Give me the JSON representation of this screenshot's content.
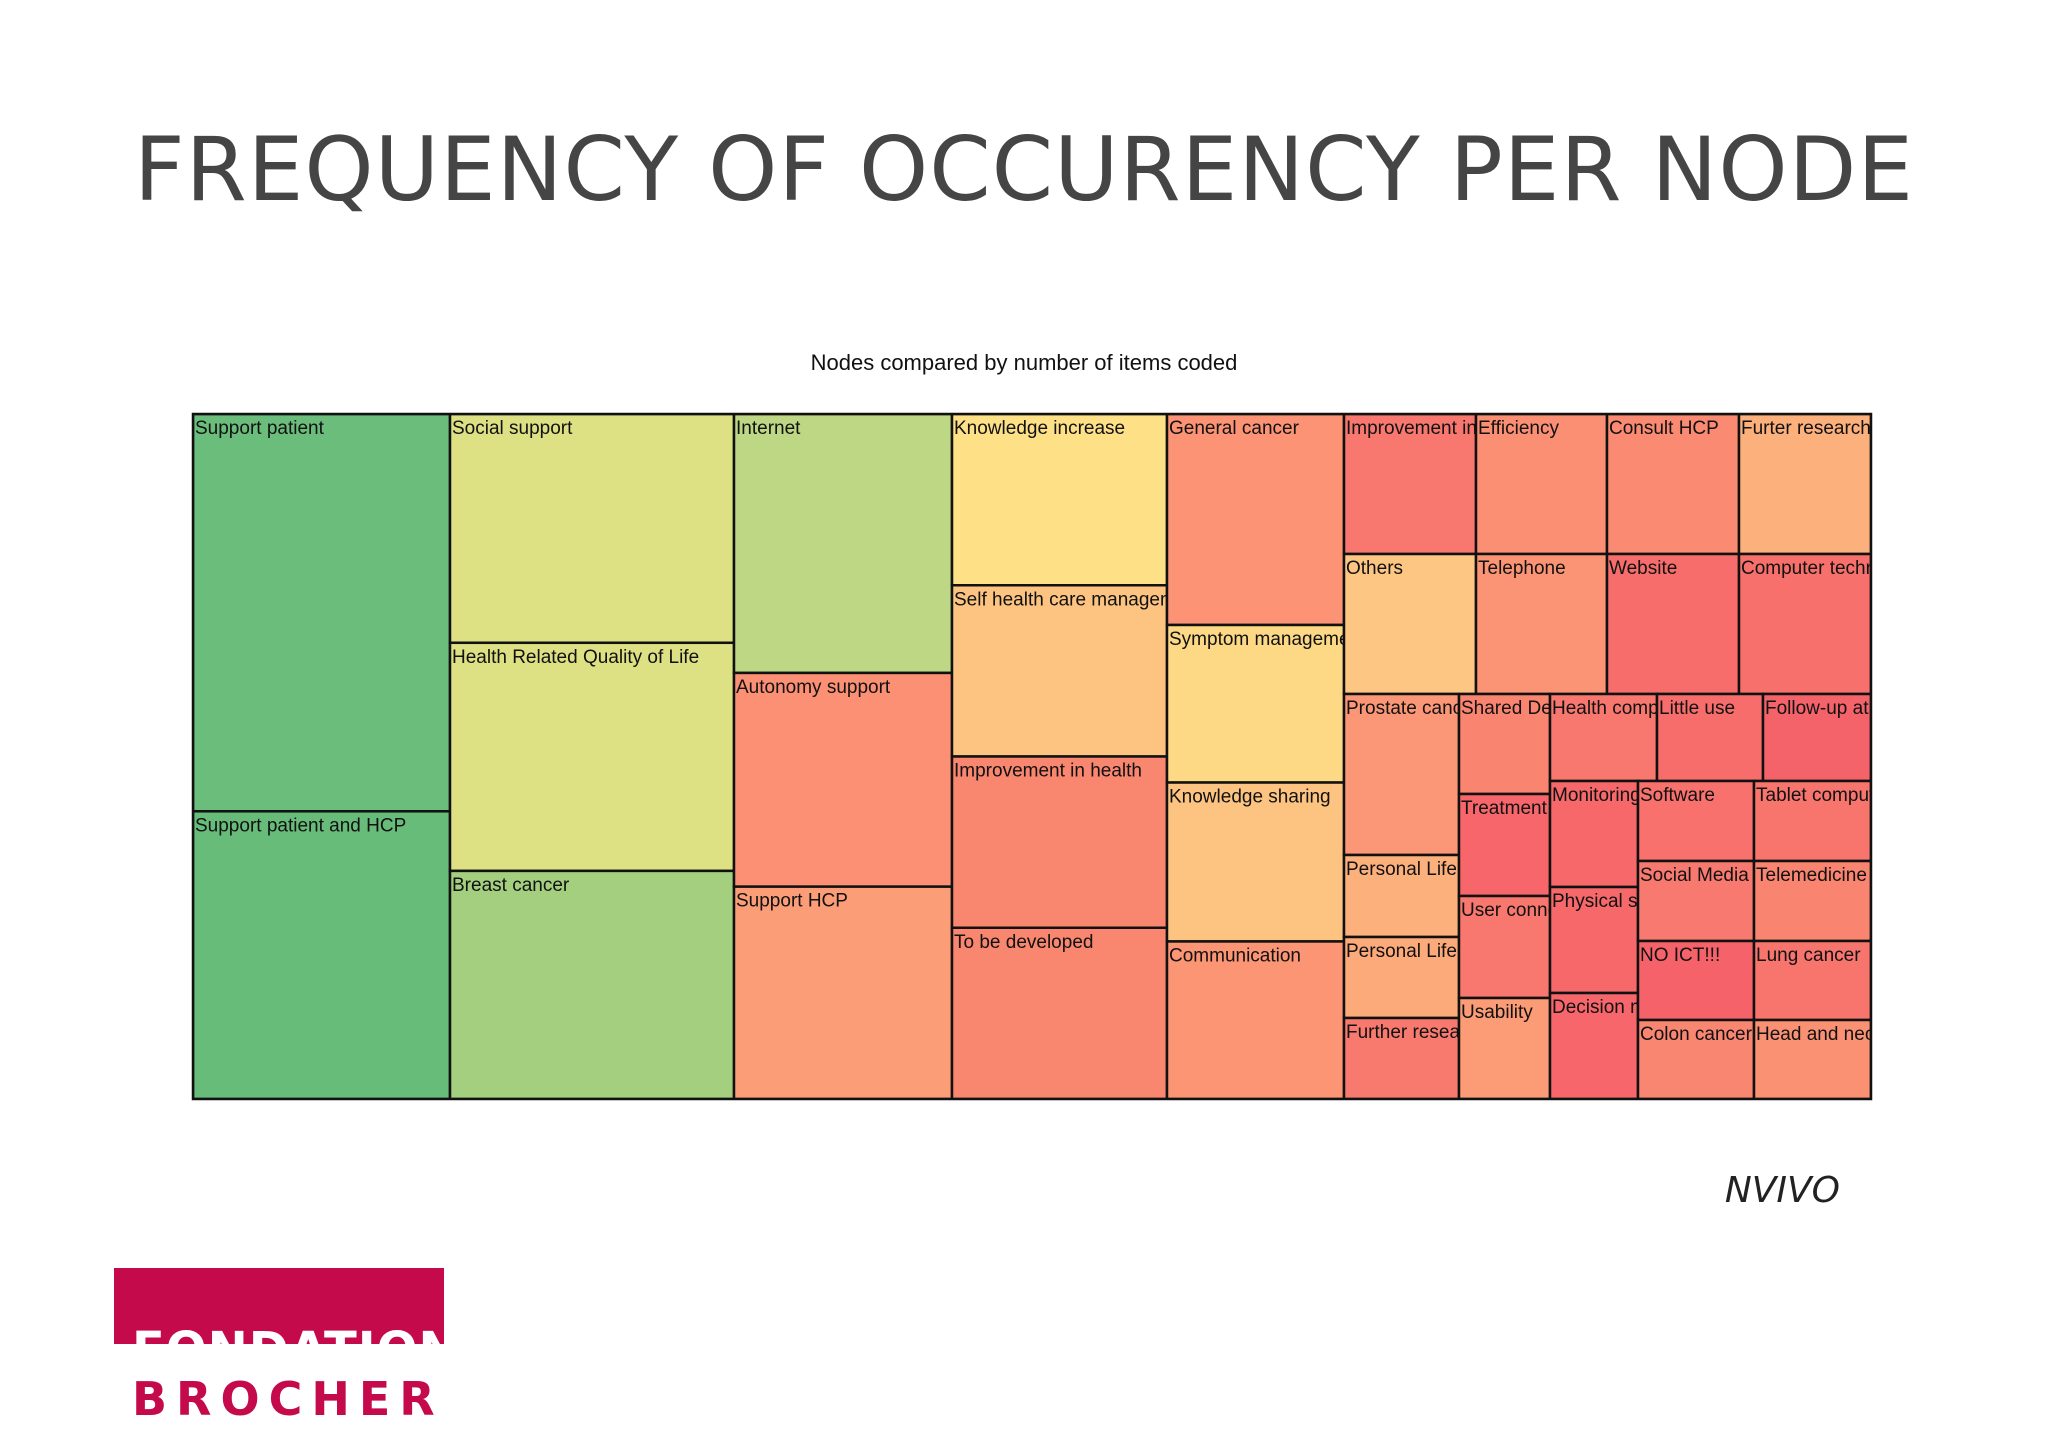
{
  "slide": {
    "title": "FREQUENCY OF OCCURENCY PER NODE",
    "source": "NVIVO",
    "logo": {
      "line1": "FONDATION",
      "line2": "BROCHER",
      "color": "#c40a4b"
    }
  },
  "chart_data": {
    "type": "treemap",
    "title": "Nodes compared by number of items coded",
    "columns": [
      {
        "cells": [
          {
            "label": "Support patient",
            "share": 0.58,
            "color": "#6bbd7c"
          },
          {
            "label": "Support patient and HCP",
            "share": 0.42,
            "color": "#68bc7a"
          }
        ]
      },
      {
        "cells": [
          {
            "label": "Social support",
            "share": 0.334,
            "color": "#dde083"
          },
          {
            "label": "Health Related Quality of Life",
            "share": 0.333,
            "color": "#dde083"
          },
          {
            "label": "Breast cancer",
            "share": 0.333,
            "color": "#a3cf7f"
          }
        ]
      },
      {
        "cells": [
          {
            "label": "Internet",
            "share": 0.378,
            "color": "#bdd784"
          },
          {
            "label": "Autonomy support",
            "share": 0.312,
            "color": "#fb9074"
          },
          {
            "label": "Support HCP",
            "share": 0.31,
            "color": "#fb9e78"
          }
        ]
      },
      {
        "cells": [
          {
            "label": "Knowledge increase",
            "share": 0.25,
            "color": "#fee087"
          },
          {
            "label": "Self health care management",
            "share": 0.25,
            "color": "#fcc480"
          },
          {
            "label": "Improvement in health",
            "share": 0.25,
            "color": "#f9866f"
          },
          {
            "label": "To be developed",
            "share": 0.25,
            "color": "#f9876f"
          }
        ]
      },
      {
        "cells": [
          {
            "label": "General cancer",
            "share": 0.308,
            "color": "#fb9374"
          },
          {
            "label": "Symptom management",
            "share": 0.23,
            "color": "#fed985"
          },
          {
            "label": "Knowledge sharing",
            "share": 0.232,
            "color": "#fcc480"
          },
          {
            "label": "Communication",
            "share": 0.23,
            "color": "#fb9574"
          }
        ]
      },
      {
        "cells": [
          {
            "label": "Improvement in self-management",
            "col": 0,
            "row": 0,
            "color": "#f8776e"
          },
          {
            "label": "Efficiency",
            "col": 1,
            "row": 0,
            "color": "#fb8f74"
          },
          {
            "label": "Consult HCP",
            "col": 2,
            "row": 0,
            "color": "#fa8a71"
          },
          {
            "label": "Furter research",
            "col": 3,
            "row": 0,
            "color": "#fcb07c"
          },
          {
            "label": "Others",
            "col": 0,
            "row": 1,
            "color": "#fdc682"
          },
          {
            "label": "Telephone",
            "col": 1,
            "row": 1,
            "color": "#fb9474"
          },
          {
            "label": "Website",
            "col": 2,
            "row": 1,
            "color": "#f76d6c"
          },
          {
            "label": "Computer technology",
            "col": 3,
            "row": 1,
            "color": "#f7706c"
          }
        ]
      },
      {
        "cells": [
          {
            "label": "Prostate cancer",
            "color": "#fb9776"
          },
          {
            "label": "Personal Life",
            "color": "#fcb07c"
          },
          {
            "label": "Personal Life",
            "color": "#fcaa7a"
          },
          {
            "label": "Further research",
            "color": "#f87a6f"
          },
          {
            "label": "Shared Decision",
            "color": "#f98470"
          },
          {
            "label": "Treatment",
            "color": "#f6666b"
          },
          {
            "label": "User connection",
            "color": "#f8776e"
          },
          {
            "label": "Usability",
            "color": "#fb9c77"
          },
          {
            "label": "Health competence",
            "color": "#f8776e"
          },
          {
            "label": "Little use",
            "color": "#f76d6c"
          },
          {
            "label": "Follow-up at home",
            "color": "#f4626a"
          },
          {
            "label": "Monitoring",
            "color": "#f7686b"
          },
          {
            "label": "Physical symptoms",
            "color": "#f7686b"
          },
          {
            "label": "Decision making",
            "color": "#f6666b"
          },
          {
            "label": "Software",
            "color": "#f8716d"
          },
          {
            "label": "Tablet computer",
            "color": "#f8756e"
          },
          {
            "label": "Social Media",
            "color": "#f8796f"
          },
          {
            "label": "Telemedicine",
            "color": "#f98470"
          },
          {
            "label": "NO ICT!!!",
            "color": "#f6626a"
          },
          {
            "label": "Lung cancer",
            "color": "#f8756e"
          },
          {
            "label": "Colon cancer",
            "color": "#f98670"
          },
          {
            "label": "Head and neck cancer",
            "color": "#fb9173"
          }
        ]
      }
    ]
  }
}
